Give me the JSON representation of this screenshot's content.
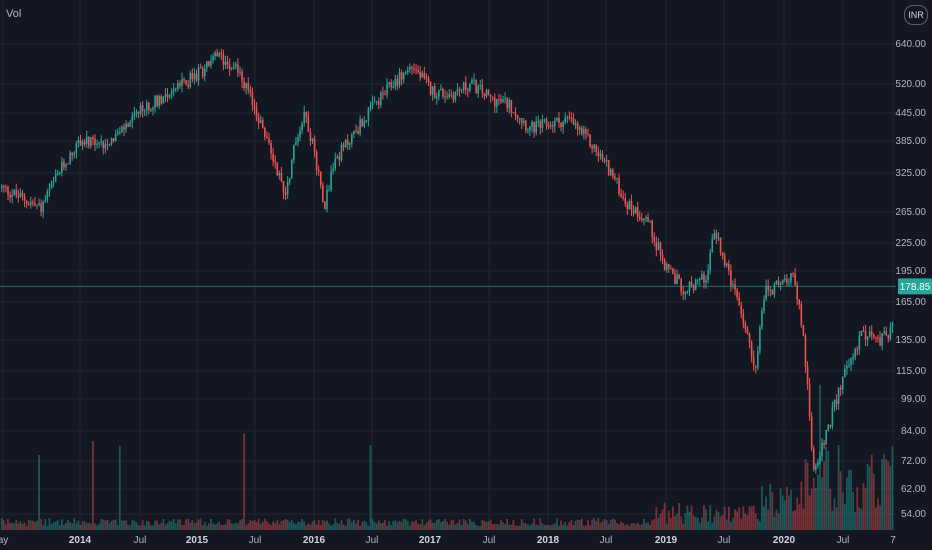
{
  "chart": {
    "volume_label": "Vol",
    "currency": "INR",
    "last_price": "178.85",
    "colors": {
      "background": "#131722",
      "up": "#26a69a",
      "down": "#ef5350",
      "price_line": "#26a69a",
      "grid": "#1f2430"
    }
  },
  "chart_data": {
    "type": "candlestick",
    "scale": "log",
    "y_tick_labels": [
      "640.00",
      "520.00",
      "445.00",
      "385.00",
      "325.00",
      "265.00",
      "225.00",
      "195.00",
      "165.00",
      "135.00",
      "115.00",
      "99.00",
      "84.00",
      "72.00",
      "62.00",
      "54.00"
    ],
    "x_tick_labels": [
      "ay",
      "2014",
      "Jul",
      "2015",
      "Jul",
      "2016",
      "Jul",
      "2017",
      "Jul",
      "2018",
      "Jul",
      "2019",
      "Jul",
      "2020",
      "Jul",
      "7"
    ],
    "ylim": [
      51,
      720
    ],
    "last_price": 178.85,
    "price_path": [
      [
        "2013-05",
        300
      ],
      [
        "2013-07",
        285
      ],
      [
        "2013-09",
        270
      ],
      [
        "2013-11",
        330
      ],
      [
        "2014-01",
        385
      ],
      [
        "2014-03",
        375
      ],
      [
        "2014-05",
        400
      ],
      [
        "2014-07",
        445
      ],
      [
        "2014-09",
        480
      ],
      [
        "2014-11",
        510
      ],
      [
        "2015-01",
        545
      ],
      [
        "2015-03",
        600
      ],
      [
        "2015-05",
        570
      ],
      [
        "2015-07",
        450
      ],
      [
        "2015-09",
        340
      ],
      [
        "2015-10",
        290
      ],
      [
        "2015-11",
        380
      ],
      [
        "2015-12",
        450
      ],
      [
        "2016-01",
        360
      ],
      [
        "2016-02",
        275
      ],
      [
        "2016-03",
        345
      ],
      [
        "2016-05",
        400
      ],
      [
        "2016-07",
        460
      ],
      [
        "2016-09",
        520
      ],
      [
        "2016-11",
        570
      ],
      [
        "2017-01",
        500
      ],
      [
        "2017-03",
        490
      ],
      [
        "2017-05",
        520
      ],
      [
        "2017-07",
        480
      ],
      [
        "2017-09",
        465
      ],
      [
        "2017-11",
        410
      ],
      [
        "2018-01",
        420
      ],
      [
        "2018-03",
        430
      ],
      [
        "2018-05",
        385
      ],
      [
        "2018-07",
        335
      ],
      [
        "2018-09",
        275
      ],
      [
        "2018-11",
        255
      ],
      [
        "2019-01",
        195
      ],
      [
        "2019-03",
        175
      ],
      [
        "2019-05",
        190
      ],
      [
        "2019-06",
        240
      ],
      [
        "2019-07",
        200
      ],
      [
        "2019-09",
        145
      ],
      [
        "2019-10",
        115
      ],
      [
        "2019-11",
        175
      ],
      [
        "2020-01",
        180
      ],
      [
        "2020-02",
        195
      ],
      [
        "2020-03",
        135
      ],
      [
        "2020-04",
        70
      ],
      [
        "2020-05",
        78
      ],
      [
        "2020-07",
        110
      ],
      [
        "2020-09",
        140
      ],
      [
        "2020-11",
        135
      ],
      [
        "2021-01",
        150
      ],
      [
        "2021-02",
        178.85
      ]
    ],
    "volume_bars": "relative heights; spikes in 2020",
    "grid": true
  }
}
